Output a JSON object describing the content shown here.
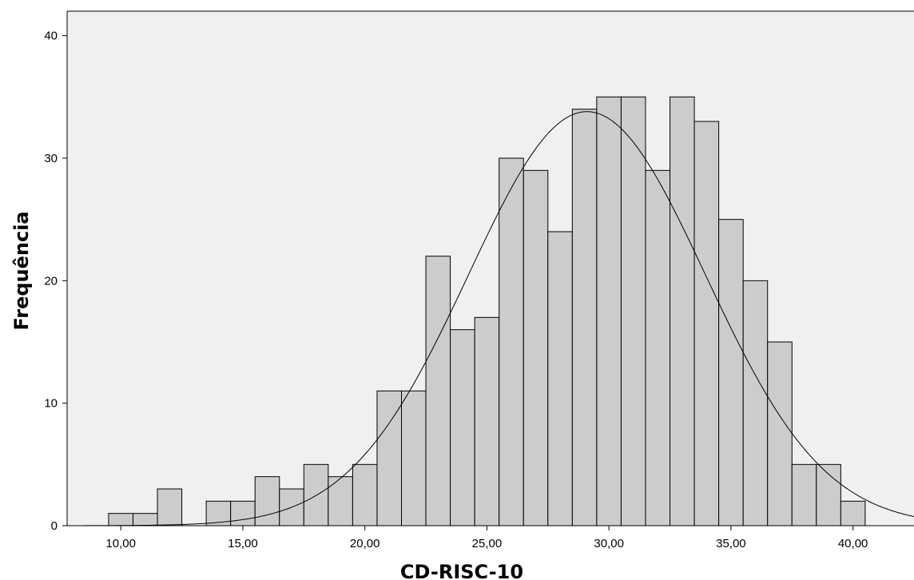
{
  "chart_data": {
    "type": "bar",
    "subtype": "histogram",
    "title": "",
    "xlabel": "CD-RISC-10",
    "ylabel": "Frequência",
    "xlim": [
      7.8,
      42.5
    ],
    "ylim": [
      0,
      42
    ],
    "bin_width": 1,
    "x_ticks": [
      10,
      15,
      20,
      25,
      30,
      35,
      40
    ],
    "x_tick_labels": [
      "10,00",
      "15,00",
      "20,00",
      "25,00",
      "30,00",
      "35,00",
      "40,00"
    ],
    "y_ticks": [
      0,
      10,
      20,
      30,
      40
    ],
    "y_tick_labels": [
      "0",
      "10",
      "20",
      "30",
      "40"
    ],
    "bins": [
      {
        "x": 10,
        "value": 1
      },
      {
        "x": 11,
        "value": 1
      },
      {
        "x": 12,
        "value": 3
      },
      {
        "x": 14,
        "value": 2
      },
      {
        "x": 15,
        "value": 2
      },
      {
        "x": 16,
        "value": 4
      },
      {
        "x": 17,
        "value": 3
      },
      {
        "x": 18,
        "value": 5
      },
      {
        "x": 19,
        "value": 4
      },
      {
        "x": 20,
        "value": 5
      },
      {
        "x": 21,
        "value": 11
      },
      {
        "x": 22,
        "value": 11
      },
      {
        "x": 23,
        "value": 22
      },
      {
        "x": 24,
        "value": 16
      },
      {
        "x": 25,
        "value": 17
      },
      {
        "x": 26,
        "value": 30
      },
      {
        "x": 27,
        "value": 29
      },
      {
        "x": 28,
        "value": 24
      },
      {
        "x": 29,
        "value": 34
      },
      {
        "x": 30,
        "value": 35
      },
      {
        "x": 31,
        "value": 35
      },
      {
        "x": 32,
        "value": 29
      },
      {
        "x": 33,
        "value": 35
      },
      {
        "x": 34,
        "value": 33
      },
      {
        "x": 35,
        "value": 25
      },
      {
        "x": 36,
        "value": 20
      },
      {
        "x": 37,
        "value": 15
      },
      {
        "x": 38,
        "value": 5
      },
      {
        "x": 39,
        "value": 5
      },
      {
        "x": 40,
        "value": 2
      }
    ],
    "normal_curve": {
      "mean": 29.1,
      "sd": 4.85,
      "peak": 33.8
    },
    "colors": {
      "plot_background": "#f0f0f0",
      "bar_fill": "#cccccc",
      "bar_stroke": "#000000",
      "curve": "#000000"
    },
    "grid": false,
    "legend": "none"
  }
}
